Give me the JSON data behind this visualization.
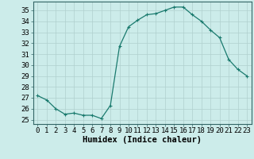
{
  "x": [
    0,
    1,
    2,
    3,
    4,
    5,
    6,
    7,
    8,
    9,
    10,
    11,
    12,
    13,
    14,
    15,
    16,
    17,
    18,
    19,
    20,
    21,
    22,
    23
  ],
  "y": [
    27.2,
    26.8,
    26.0,
    25.5,
    25.6,
    25.4,
    25.4,
    25.1,
    26.3,
    31.7,
    33.5,
    34.1,
    34.6,
    34.7,
    35.0,
    35.3,
    35.3,
    34.6,
    34.0,
    33.2,
    32.5,
    30.5,
    29.6,
    29.0
  ],
  "line_color": "#1a7a6e",
  "marker": "+",
  "marker_size": 3,
  "background_color": "#ccecea",
  "grid_color": "#b0d0ce",
  "xlabel": "Humidex (Indice chaleur)",
  "ylabel_ticks": [
    25,
    26,
    27,
    28,
    29,
    30,
    31,
    32,
    33,
    34,
    35
  ],
  "ylim": [
    24.6,
    35.8
  ],
  "xlim": [
    -0.5,
    23.5
  ],
  "tick_label_fontsize": 6.5,
  "xlabel_fontsize": 7.5,
  "linewidth": 0.9,
  "markeredgewidth": 0.8
}
